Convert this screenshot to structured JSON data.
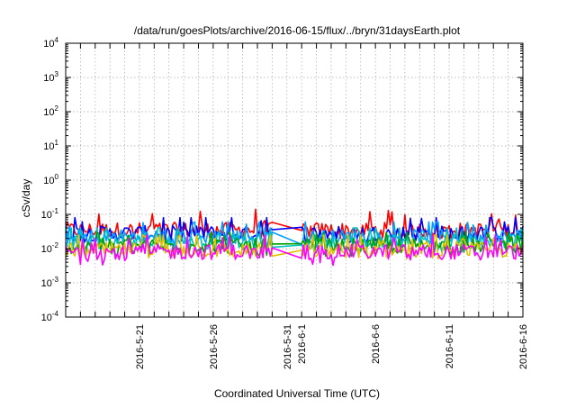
{
  "chart_data": {
    "type": "line",
    "title": "/data/run/goesPlots/archive/2016-06-15/flux/../bryn/31daysEarth.plot",
    "xlabel": "Coordinated Universal Time (UTC)",
    "ylabel": "cSv/day",
    "y_scale": "log",
    "ylim": [
      0.0001,
      10000
    ],
    "y_ticks": [
      {
        "value": 0.0001,
        "base": "10",
        "exp": "-4"
      },
      {
        "value": 0.001,
        "base": "10",
        "exp": "-3"
      },
      {
        "value": 0.01,
        "base": "10",
        "exp": "-2"
      },
      {
        "value": 0.1,
        "base": "10",
        "exp": "-1"
      },
      {
        "value": 1,
        "base": "10",
        "exp": "0"
      },
      {
        "value": 10,
        "base": "10",
        "exp": "1"
      },
      {
        "value": 100,
        "base": "10",
        "exp": "2"
      },
      {
        "value": 1000,
        "base": "10",
        "exp": "3"
      },
      {
        "value": 10000,
        "base": "10",
        "exp": "4"
      }
    ],
    "xlim": [
      "2016-05-16",
      "2016-06-16"
    ],
    "x_ticks": [
      "2016-5-21",
      "2016-5-26",
      "2016-5-31",
      "2016-6-1",
      "2016-6-6",
      "2016-6-11",
      "2016-6-16"
    ],
    "grid": true,
    "legend": "none",
    "data_gap": [
      "2016-05-30",
      "2016-06-01"
    ],
    "series": [
      {
        "color": "#ff0000",
        "typical": 0.035,
        "range": [
          0.02,
          0.15
        ]
      },
      {
        "color": "#0000ff",
        "typical": 0.028,
        "range": [
          0.015,
          0.08
        ]
      },
      {
        "color": "#00a0ff",
        "typical": 0.022,
        "range": [
          0.012,
          0.06
        ]
      },
      {
        "color": "#00c0c0",
        "typical": 0.016,
        "range": [
          0.008,
          0.04
        ]
      },
      {
        "color": "#00a000",
        "typical": 0.012,
        "range": [
          0.006,
          0.03
        ]
      },
      {
        "color": "#e0c000",
        "typical": 0.009,
        "range": [
          0.005,
          0.025
        ]
      },
      {
        "color": "#ff00ff",
        "typical": 0.008,
        "range": [
          0.003,
          0.025
        ]
      }
    ]
  }
}
